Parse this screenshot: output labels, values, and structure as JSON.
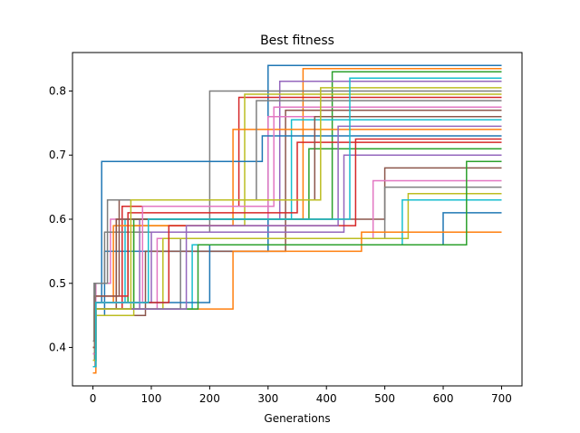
{
  "chart_data": {
    "type": "line",
    "title": "Best fitness",
    "xlabel": "Generations",
    "ylabel": "",
    "xlim": [
      -35,
      735
    ],
    "ylim": [
      0.34,
      0.86
    ],
    "x_ticks": [
      0,
      100,
      200,
      300,
      400,
      500,
      600,
      700
    ],
    "y_ticks": [
      0.4,
      0.5,
      0.6,
      0.7,
      0.8
    ],
    "x_tick_labels": [
      "0",
      "100",
      "200",
      "300",
      "400",
      "500",
      "600",
      "700"
    ],
    "y_tick_labels": [
      "0.4",
      "0.5",
      "0.6",
      "0.7",
      "0.8"
    ],
    "grid": false,
    "legend": "none",
    "step": true,
    "palette": [
      "#1f77b4",
      "#ff7f0e",
      "#2ca02c",
      "#d62728",
      "#9467bd",
      "#8c564b",
      "#e377c2",
      "#7f7f7f",
      "#bcbd22",
      "#17becf"
    ],
    "series": [
      {
        "x": [
          0,
          5,
          20,
          300,
          700
        ],
        "y": [
          0.37,
          0.45,
          0.55,
          0.84,
          0.84
        ]
      },
      {
        "x": [
          0,
          5,
          40,
          360,
          700
        ],
        "y": [
          0.39,
          0.46,
          0.6,
          0.835,
          0.835
        ]
      },
      {
        "x": [
          0,
          4,
          60,
          410,
          700
        ],
        "y": [
          0.4,
          0.47,
          0.6,
          0.83,
          0.83
        ]
      },
      {
        "x": [
          0,
          3,
          50,
          250,
          700
        ],
        "y": [
          0.38,
          0.46,
          0.62,
          0.79,
          0.79
        ]
      },
      {
        "x": [
          0,
          5,
          80,
          320,
          700
        ],
        "y": [
          0.38,
          0.46,
          0.6,
          0.815,
          0.815
        ]
      },
      {
        "x": [
          0,
          4,
          90,
          330,
          700
        ],
        "y": [
          0.37,
          0.45,
          0.55,
          0.77,
          0.77
        ]
      },
      {
        "x": [
          0,
          5,
          30,
          300,
          700
        ],
        "y": [
          0.4,
          0.5,
          0.6,
          0.76,
          0.76
        ]
      },
      {
        "x": [
          0,
          2,
          20,
          200,
          700
        ],
        "y": [
          0.41,
          0.5,
          0.58,
          0.8,
          0.8
        ]
      },
      {
        "x": [
          0,
          5,
          70,
          260,
          700
        ],
        "y": [
          0.37,
          0.45,
          0.59,
          0.795,
          0.795
        ]
      },
      {
        "x": [
          0,
          5,
          55,
          340,
          700
        ],
        "y": [
          0.39,
          0.47,
          0.6,
          0.755,
          0.755
        ]
      },
      {
        "x": [
          0,
          4,
          15,
          290,
          700
        ],
        "y": [
          0.38,
          0.47,
          0.69,
          0.73,
          0.73
        ]
      },
      {
        "x": [
          0,
          5,
          35,
          240,
          700
        ],
        "y": [
          0.4,
          0.47,
          0.59,
          0.74,
          0.74
        ]
      },
      {
        "x": [
          0,
          3,
          70,
          370,
          700
        ],
        "y": [
          0.38,
          0.46,
          0.6,
          0.71,
          0.71
        ]
      },
      {
        "x": [
          0,
          4,
          60,
          350,
          700
        ],
        "y": [
          0.39,
          0.48,
          0.61,
          0.72,
          0.72
        ]
      },
      {
        "x": [
          0,
          5,
          100,
          430,
          700
        ],
        "y": [
          0.38,
          0.47,
          0.58,
          0.7,
          0.7
        ]
      },
      {
        "x": [
          0,
          5,
          40,
          500,
          700
        ],
        "y": [
          0.38,
          0.46,
          0.6,
          0.68,
          0.68
        ]
      },
      {
        "x": [
          0,
          4,
          110,
          480,
          700
        ],
        "y": [
          0.39,
          0.46,
          0.57,
          0.66,
          0.66
        ]
      },
      {
        "x": [
          0,
          5,
          150,
          500,
          700
        ],
        "y": [
          0.37,
          0.46,
          0.57,
          0.65,
          0.65
        ]
      },
      {
        "x": [
          0,
          5,
          120,
          540,
          700
        ],
        "y": [
          0.38,
          0.46,
          0.57,
          0.64,
          0.64
        ]
      },
      {
        "x": [
          0,
          4,
          170,
          530,
          700
        ],
        "y": [
          0.38,
          0.46,
          0.56,
          0.63,
          0.63
        ]
      },
      {
        "x": [
          0,
          5,
          200,
          600,
          700
        ],
        "y": [
          0.38,
          0.47,
          0.56,
          0.61,
          0.61
        ]
      },
      {
        "x": [
          0,
          5,
          240,
          460,
          700
        ],
        "y": [
          0.36,
          0.46,
          0.55,
          0.58,
          0.58
        ]
      },
      {
        "x": [
          0,
          5,
          180,
          640,
          700
        ],
        "y": [
          0.37,
          0.46,
          0.56,
          0.69,
          0.69
        ]
      },
      {
        "x": [
          0,
          4,
          130,
          450,
          700
        ],
        "y": [
          0.38,
          0.47,
          0.59,
          0.725,
          0.725
        ]
      },
      {
        "x": [
          0,
          5,
          160,
          420,
          700
        ],
        "y": [
          0.37,
          0.46,
          0.59,
          0.745,
          0.745
        ]
      },
      {
        "x": [
          0,
          3,
          45,
          380,
          700
        ],
        "y": [
          0.4,
          0.48,
          0.63,
          0.76,
          0.76
        ]
      },
      {
        "x": [
          0,
          5,
          85,
          310,
          700
        ],
        "y": [
          0.39,
          0.47,
          0.62,
          0.775,
          0.775
        ]
      },
      {
        "x": [
          0,
          4,
          25,
          280,
          700
        ],
        "y": [
          0.38,
          0.5,
          0.63,
          0.785,
          0.785
        ]
      },
      {
        "x": [
          0,
          5,
          65,
          390,
          700
        ],
        "y": [
          0.38,
          0.46,
          0.63,
          0.805,
          0.805
        ]
      },
      {
        "x": [
          0,
          5,
          95,
          440,
          700
        ],
        "y": [
          0.37,
          0.47,
          0.6,
          0.82,
          0.82
        ]
      }
    ]
  }
}
